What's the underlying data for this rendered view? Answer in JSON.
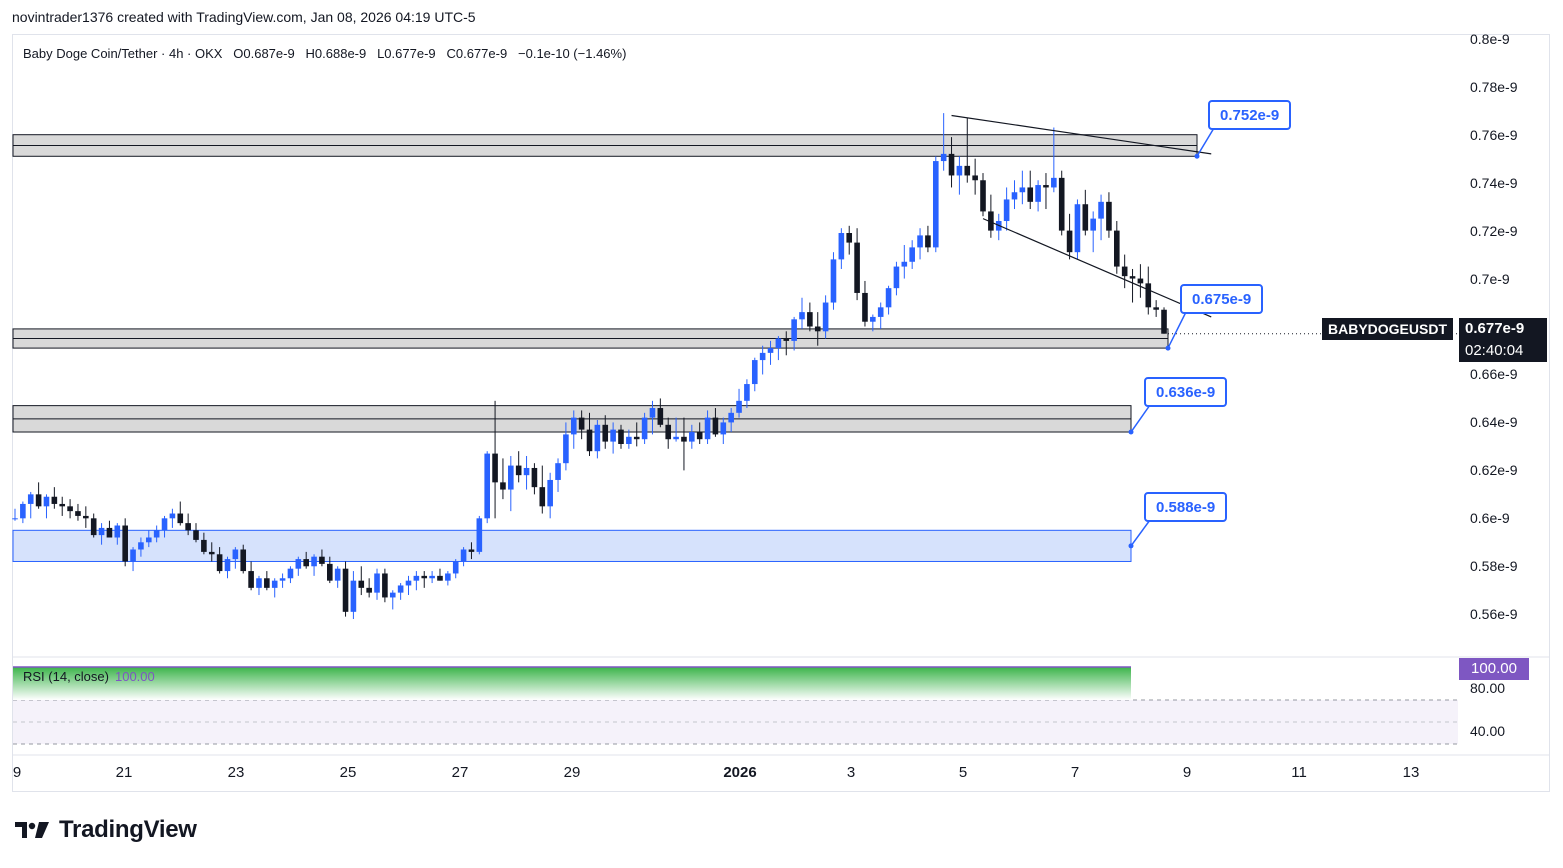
{
  "header": {
    "attribution": "novintrader1376 created with TradingView.com, Jan 08, 2026 04:19 UTC-5"
  },
  "legend": {
    "text": "Baby Doge Coin/Tether · 4h · OKX   O0.687e-9   H0.688e-9   L0.677e-9   C0.677e-9   −0.1e-10 (−1.46%)"
  },
  "price_axis": [
    "0.8e-9",
    "0.78e-9",
    "0.76e-9",
    "0.74e-9",
    "0.72e-9",
    "0.7e-9",
    "0.68e-9",
    "0.66e-9",
    "0.64e-9",
    "0.62e-9",
    "0.6e-9",
    "0.58e-9",
    "0.56e-9"
  ],
  "time_axis": [
    "9",
    "21",
    "23",
    "25",
    "27",
    "29",
    "2026",
    "3",
    "5",
    "7",
    "9",
    "11",
    "13"
  ],
  "symbol": "BABYDOGEUSDT",
  "last_price": "0.677e-9",
  "countdown": "02:40:04",
  "levels": [
    "0.752e-9",
    "0.675e-9",
    "0.636e-9",
    "0.588e-9"
  ],
  "rsi": {
    "label": "RSI (14, close)",
    "value": "100.00",
    "axis": [
      "80.00",
      "40.00"
    ],
    "color": "#7e57c2"
  },
  "brand": "TradingView",
  "colors": {
    "up": "#2962ff",
    "down": "#131722",
    "zone_gray": "#d9d9d9",
    "zone_blue": "#d6e2fc"
  },
  "chart_data": {
    "type": "candlestick",
    "title": "Baby Doge Coin/Tether · 4h · OKX",
    "ylim": [
      0.548,
      0.802
    ],
    "y_unit": "e-9",
    "x_ticks": [
      "9",
      "21",
      "23",
      "25",
      "27",
      "29",
      "2026",
      "3",
      "5",
      "7",
      "9",
      "11",
      "13"
    ],
    "ohlc": [
      [
        0.6,
        0.604,
        0.599,
        0.6
      ],
      [
        0.6,
        0.607,
        0.598,
        0.606
      ],
      [
        0.606,
        0.611,
        0.6,
        0.61
      ],
      [
        0.61,
        0.615,
        0.604,
        0.605
      ],
      [
        0.605,
        0.61,
        0.6,
        0.609
      ],
      [
        0.609,
        0.613,
        0.604,
        0.606
      ],
      [
        0.606,
        0.609,
        0.601,
        0.605
      ],
      [
        0.605,
        0.608,
        0.6,
        0.603
      ],
      [
        0.603,
        0.606,
        0.599,
        0.601
      ],
      [
        0.601,
        0.605,
        0.596,
        0.6
      ],
      [
        0.6,
        0.602,
        0.592,
        0.593
      ],
      [
        0.593,
        0.598,
        0.589,
        0.596
      ],
      [
        0.596,
        0.599,
        0.592,
        0.592
      ],
      [
        0.592,
        0.598,
        0.589,
        0.597
      ],
      [
        0.597,
        0.6,
        0.58,
        0.582
      ],
      [
        0.582,
        0.588,
        0.578,
        0.587
      ],
      [
        0.587,
        0.592,
        0.584,
        0.59
      ],
      [
        0.59,
        0.595,
        0.588,
        0.592
      ],
      [
        0.592,
        0.597,
        0.59,
        0.595
      ],
      [
        0.595,
        0.601,
        0.592,
        0.6
      ],
      [
        0.6,
        0.604,
        0.596,
        0.602
      ],
      [
        0.602,
        0.607,
        0.597,
        0.598
      ],
      [
        0.598,
        0.602,
        0.593,
        0.595
      ],
      [
        0.595,
        0.598,
        0.59,
        0.591
      ],
      [
        0.591,
        0.594,
        0.585,
        0.586
      ],
      [
        0.586,
        0.59,
        0.582,
        0.585
      ],
      [
        0.585,
        0.588,
        0.577,
        0.578
      ],
      [
        0.578,
        0.584,
        0.575,
        0.583
      ],
      [
        0.583,
        0.588,
        0.579,
        0.587
      ],
      [
        0.587,
        0.589,
        0.577,
        0.578
      ],
      [
        0.578,
        0.582,
        0.57,
        0.571
      ],
      [
        0.571,
        0.576,
        0.568,
        0.575
      ],
      [
        0.575,
        0.578,
        0.57,
        0.571
      ],
      [
        0.571,
        0.575,
        0.567,
        0.574
      ],
      [
        0.574,
        0.577,
        0.571,
        0.575
      ],
      [
        0.575,
        0.58,
        0.573,
        0.579
      ],
      [
        0.579,
        0.584,
        0.576,
        0.583
      ],
      [
        0.583,
        0.586,
        0.579,
        0.58
      ],
      [
        0.58,
        0.585,
        0.576,
        0.584
      ],
      [
        0.584,
        0.587,
        0.58,
        0.581
      ],
      [
        0.581,
        0.584,
        0.573,
        0.574
      ],
      [
        0.574,
        0.58,
        0.571,
        0.579
      ],
      [
        0.579,
        0.582,
        0.559,
        0.561
      ],
      [
        0.561,
        0.578,
        0.558,
        0.574
      ],
      [
        0.574,
        0.58,
        0.568,
        0.571
      ],
      [
        0.571,
        0.575,
        0.567,
        0.569
      ],
      [
        0.569,
        0.579,
        0.566,
        0.577
      ],
      [
        0.577,
        0.579,
        0.565,
        0.567
      ],
      [
        0.567,
        0.57,
        0.562,
        0.569
      ],
      [
        0.569,
        0.573,
        0.566,
        0.572
      ],
      [
        0.572,
        0.576,
        0.568,
        0.574
      ],
      [
        0.574,
        0.578,
        0.57,
        0.576
      ],
      [
        0.576,
        0.578,
        0.571,
        0.575
      ],
      [
        0.575,
        0.578,
        0.573,
        0.576
      ],
      [
        0.576,
        0.579,
        0.574,
        0.574
      ],
      [
        0.574,
        0.578,
        0.572,
        0.577
      ],
      [
        0.577,
        0.583,
        0.575,
        0.582
      ],
      [
        0.582,
        0.588,
        0.58,
        0.587
      ],
      [
        0.587,
        0.59,
        0.583,
        0.586
      ],
      [
        0.586,
        0.601,
        0.585,
        0.6
      ],
      [
        0.6,
        0.628,
        0.598,
        0.627
      ],
      [
        0.627,
        0.649,
        0.6,
        0.615
      ],
      [
        0.615,
        0.625,
        0.608,
        0.612
      ],
      [
        0.612,
        0.626,
        0.603,
        0.622
      ],
      [
        0.622,
        0.628,
        0.615,
        0.618
      ],
      [
        0.618,
        0.626,
        0.612,
        0.621
      ],
      [
        0.621,
        0.623,
        0.61,
        0.613
      ],
      [
        0.613,
        0.622,
        0.602,
        0.605
      ],
      [
        0.605,
        0.619,
        0.6,
        0.616
      ],
      [
        0.616,
        0.625,
        0.611,
        0.623
      ],
      [
        0.623,
        0.64,
        0.62,
        0.635
      ],
      [
        0.635,
        0.645,
        0.629,
        0.642
      ],
      [
        0.642,
        0.645,
        0.633,
        0.637
      ],
      [
        0.637,
        0.644,
        0.626,
        0.628
      ],
      [
        0.628,
        0.641,
        0.625,
        0.639
      ],
      [
        0.639,
        0.643,
        0.629,
        0.632
      ],
      [
        0.632,
        0.64,
        0.627,
        0.637
      ],
      [
        0.637,
        0.639,
        0.629,
        0.631
      ],
      [
        0.631,
        0.637,
        0.629,
        0.634
      ],
      [
        0.634,
        0.64,
        0.63,
        0.633
      ],
      [
        0.633,
        0.644,
        0.631,
        0.642
      ],
      [
        0.642,
        0.649,
        0.635,
        0.646
      ],
      [
        0.646,
        0.65,
        0.638,
        0.639
      ],
      [
        0.639,
        0.642,
        0.629,
        0.633
      ],
      [
        0.633,
        0.642,
        0.632,
        0.634
      ],
      [
        0.634,
        0.642,
        0.62,
        0.632
      ],
      [
        0.632,
        0.639,
        0.629,
        0.636
      ],
      [
        0.636,
        0.64,
        0.631,
        0.633
      ],
      [
        0.633,
        0.645,
        0.631,
        0.642
      ],
      [
        0.642,
        0.646,
        0.634,
        0.635
      ],
      [
        0.635,
        0.642,
        0.631,
        0.64
      ],
      [
        0.64,
        0.646,
        0.636,
        0.644
      ],
      [
        0.644,
        0.654,
        0.642,
        0.649
      ],
      [
        0.649,
        0.658,
        0.646,
        0.656
      ],
      [
        0.656,
        0.667,
        0.653,
        0.666
      ],
      [
        0.666,
        0.672,
        0.66,
        0.669
      ],
      [
        0.669,
        0.674,
        0.664,
        0.671
      ],
      [
        0.671,
        0.676,
        0.666,
        0.675
      ],
      [
        0.675,
        0.678,
        0.668,
        0.674
      ],
      [
        0.674,
        0.684,
        0.67,
        0.683
      ],
      [
        0.683,
        0.692,
        0.679,
        0.686
      ],
      [
        0.686,
        0.69,
        0.678,
        0.68
      ],
      [
        0.68,
        0.686,
        0.672,
        0.678
      ],
      [
        0.678,
        0.693,
        0.675,
        0.69
      ],
      [
        0.69,
        0.711,
        0.687,
        0.708
      ],
      [
        0.708,
        0.721,
        0.704,
        0.719
      ],
      [
        0.719,
        0.722,
        0.71,
        0.715
      ],
      [
        0.715,
        0.721,
        0.691,
        0.694
      ],
      [
        0.694,
        0.699,
        0.68,
        0.682
      ],
      [
        0.682,
        0.685,
        0.678,
        0.684
      ],
      [
        0.684,
        0.69,
        0.679,
        0.688
      ],
      [
        0.688,
        0.697,
        0.685,
        0.696
      ],
      [
        0.696,
        0.707,
        0.693,
        0.705
      ],
      [
        0.705,
        0.714,
        0.7,
        0.707
      ],
      [
        0.707,
        0.716,
        0.704,
        0.713
      ],
      [
        0.713,
        0.721,
        0.708,
        0.718
      ],
      [
        0.718,
        0.722,
        0.711,
        0.713
      ],
      [
        0.713,
        0.751,
        0.711,
        0.749
      ],
      [
        0.749,
        0.769,
        0.745,
        0.752
      ],
      [
        0.752,
        0.759,
        0.738,
        0.743
      ],
      [
        0.743,
        0.751,
        0.735,
        0.747
      ],
      [
        0.747,
        0.767,
        0.74,
        0.743
      ],
      [
        0.743,
        0.75,
        0.735,
        0.741
      ],
      [
        0.741,
        0.744,
        0.726,
        0.728
      ],
      [
        0.728,
        0.735,
        0.717,
        0.72
      ],
      [
        0.72,
        0.727,
        0.716,
        0.724
      ],
      [
        0.724,
        0.738,
        0.72,
        0.733
      ],
      [
        0.733,
        0.741,
        0.729,
        0.736
      ],
      [
        0.736,
        0.745,
        0.731,
        0.738
      ],
      [
        0.738,
        0.745,
        0.729,
        0.732
      ],
      [
        0.732,
        0.741,
        0.728,
        0.739
      ],
      [
        0.739,
        0.744,
        0.729,
        0.738
      ],
      [
        0.738,
        0.763,
        0.736,
        0.742
      ],
      [
        0.742,
        0.745,
        0.718,
        0.72
      ],
      [
        0.72,
        0.727,
        0.708,
        0.711
      ],
      [
        0.711,
        0.733,
        0.708,
        0.731
      ],
      [
        0.731,
        0.737,
        0.718,
        0.72
      ],
      [
        0.72,
        0.728,
        0.711,
        0.725
      ],
      [
        0.725,
        0.735,
        0.716,
        0.732
      ],
      [
        0.732,
        0.736,
        0.717,
        0.72
      ],
      [
        0.72,
        0.724,
        0.702,
        0.705
      ],
      [
        0.705,
        0.71,
        0.696,
        0.701
      ],
      [
        0.701,
        0.704,
        0.69,
        0.7
      ],
      [
        0.7,
        0.706,
        0.692,
        0.698
      ],
      [
        0.698,
        0.705,
        0.685,
        0.688
      ],
      [
        0.688,
        0.691,
        0.684,
        0.687
      ],
      [
        0.687,
        0.688,
        0.677,
        0.677
      ]
    ],
    "zones": [
      {
        "label": "0.752e-9",
        "low": 0.751,
        "high": 0.76,
        "color": "gray"
      },
      {
        "label": "0.675e-9",
        "low": 0.671,
        "high": 0.679,
        "color": "gray"
      },
      {
        "label": "0.636e-9",
        "low": 0.636,
        "high": 0.647,
        "color": "gray"
      },
      {
        "label": "0.588e-9",
        "low": 0.582,
        "high": 0.595,
        "color": "blue"
      }
    ],
    "trendlines": [
      {
        "from": [
          119,
          0.768
        ],
        "to": [
          152,
          0.752
        ]
      },
      {
        "from": [
          123,
          0.725
        ],
        "to": [
          152,
          0.684
        ]
      }
    ],
    "last_price": 0.677,
    "rsi": {
      "period": 14,
      "value": 100.0,
      "levels": [
        80,
        40
      ]
    }
  }
}
